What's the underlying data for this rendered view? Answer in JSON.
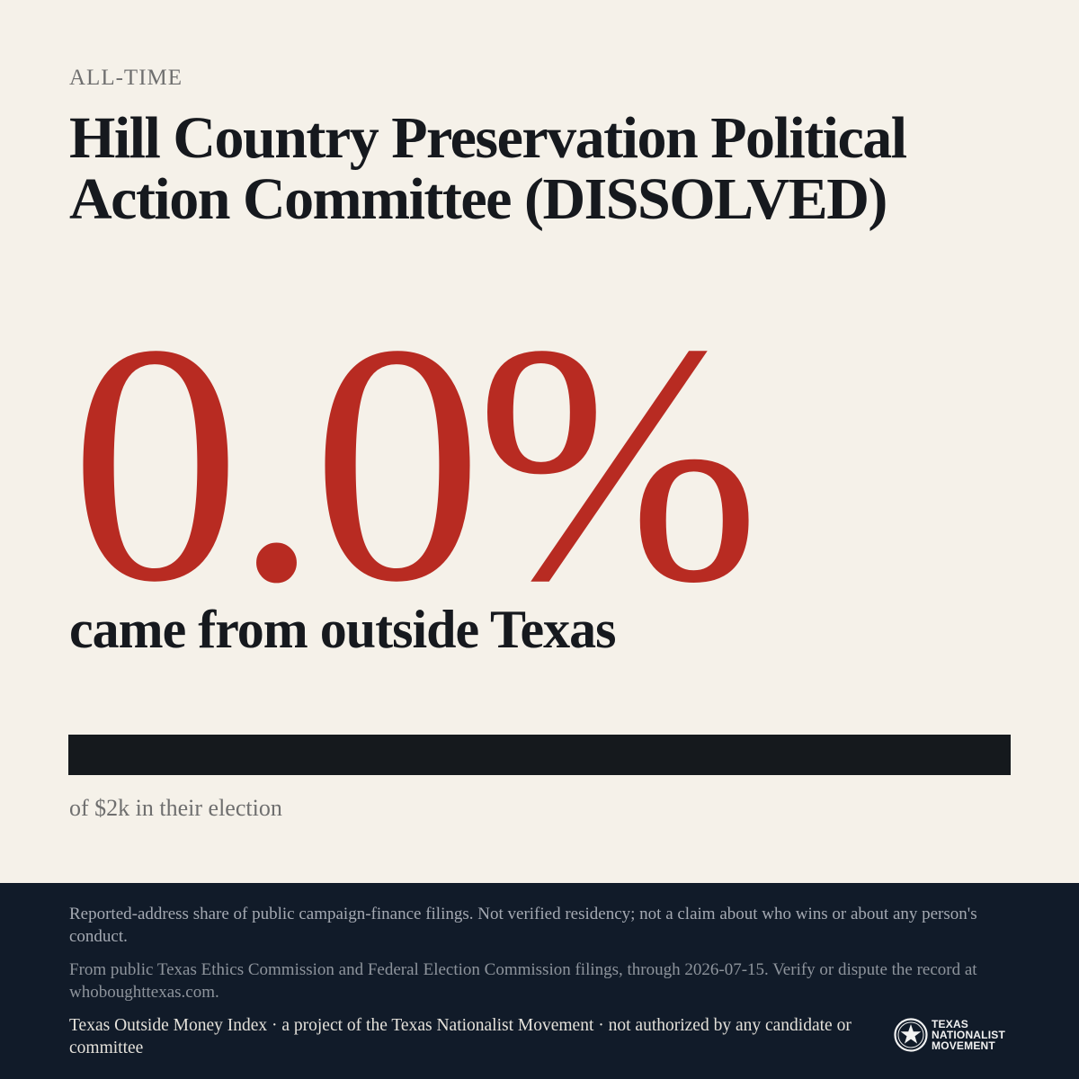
{
  "header": {
    "eyebrow": "ALL-TIME",
    "title": "Hill Country Preservation Political Action Committee (DISSOLVED)"
  },
  "stat": {
    "value": "0.0%",
    "label": "came from outside Texas",
    "fill_percent": 0.0,
    "note": "of $2k in their election"
  },
  "colors": {
    "accent": "#b82b22",
    "bar": "#15191d",
    "footer_bg": "#111b29",
    "background": "#f5f1e9"
  },
  "footer": {
    "disclaimer": "Reported-address share of public campaign-finance filings. Not verified residency; not a claim about who wins or about any person's conduct.",
    "source": "From public Texas Ethics Commission and Federal Election Commission filings, through 2026-07-15. Verify or dispute the record at whoboughttexas.com.",
    "credit": "Texas Outside Money Index · a project of the Texas Nationalist Movement · not authorized by any candidate or committee"
  },
  "brand": {
    "icon": "star-seal-logo",
    "lines": [
      "TEXAS",
      "NATIONALIST",
      "MOVEMENT"
    ]
  }
}
